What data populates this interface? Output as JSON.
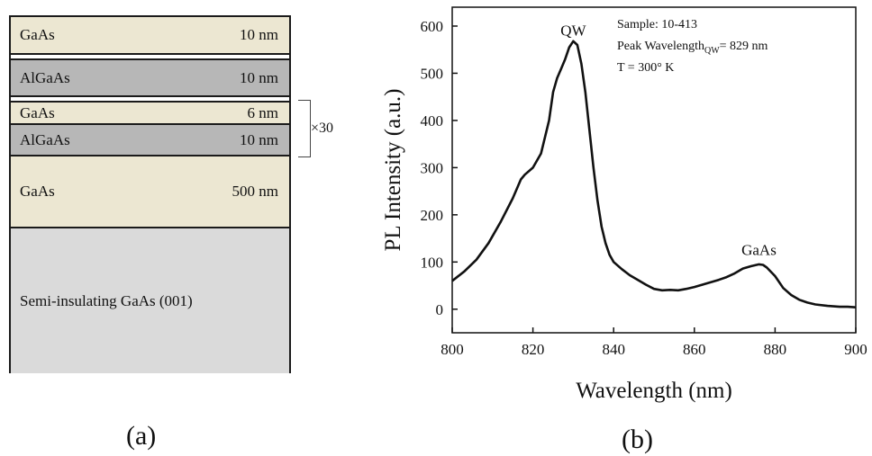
{
  "figure_a": {
    "layers": [
      {
        "material": "GaAs",
        "thickness": "10 nm"
      },
      {
        "material": "AlGaAs",
        "thickness": "10 nm"
      },
      {
        "material": "GaAs",
        "thickness": "6 nm"
      },
      {
        "material": "AlGaAs",
        "thickness": "10 nm"
      },
      {
        "material": "GaAs",
        "thickness": "500 nm"
      },
      {
        "material": "Semi-insulating GaAs (001)",
        "thickness": ""
      }
    ],
    "repeat_label": "×30",
    "panel_label": "(a)"
  },
  "figure_b": {
    "panel_label": "(b)",
    "info": {
      "sample": "Sample: 10-413",
      "peak_prefix": "Peak Wavelength",
      "peak_sub": "QW",
      "peak_suffix": "= 829 nm",
      "temperature": "T = 300° K"
    }
  },
  "chart_data": {
    "type": "line",
    "xlabel": "Wavelength (nm)",
    "ylabel": "PL Intensity (a.u.)",
    "xlim": [
      800,
      900
    ],
    "ylim": [
      -50,
      640
    ],
    "xticks": [
      800,
      820,
      840,
      860,
      880,
      900
    ],
    "yticks": [
      0,
      100,
      200,
      300,
      400,
      500,
      600
    ],
    "grid": false,
    "annotations": [
      {
        "text": "QW",
        "x": 830,
        "y": 580
      },
      {
        "text": "GaAs",
        "x": 876,
        "y": 115
      }
    ],
    "series": [
      {
        "x": [
          800,
          803,
          806,
          809,
          812,
          815,
          817,
          818,
          820,
          822,
          824,
          825,
          826,
          827,
          828,
          829,
          830,
          831,
          832,
          833,
          834,
          835,
          836,
          837,
          838,
          839,
          840,
          842,
          844,
          846,
          848,
          850,
          852,
          854,
          856,
          858,
          860,
          862,
          864,
          866,
          868,
          870,
          872,
          874,
          876,
          877,
          878,
          880,
          882,
          884,
          886,
          888,
          890,
          893,
          896,
          898,
          900
        ],
        "y": [
          60,
          80,
          105,
          140,
          185,
          235,
          275,
          285,
          300,
          330,
          400,
          460,
          490,
          510,
          530,
          555,
          568,
          560,
          520,
          460,
          380,
          300,
          230,
          175,
          140,
          115,
          100,
          85,
          72,
          62,
          52,
          43,
          40,
          41,
          40,
          43,
          47,
          52,
          57,
          62,
          68,
          76,
          86,
          91,
          95,
          94,
          88,
          70,
          45,
          30,
          20,
          14,
          10,
          7,
          5,
          5,
          4
        ]
      }
    ]
  }
}
